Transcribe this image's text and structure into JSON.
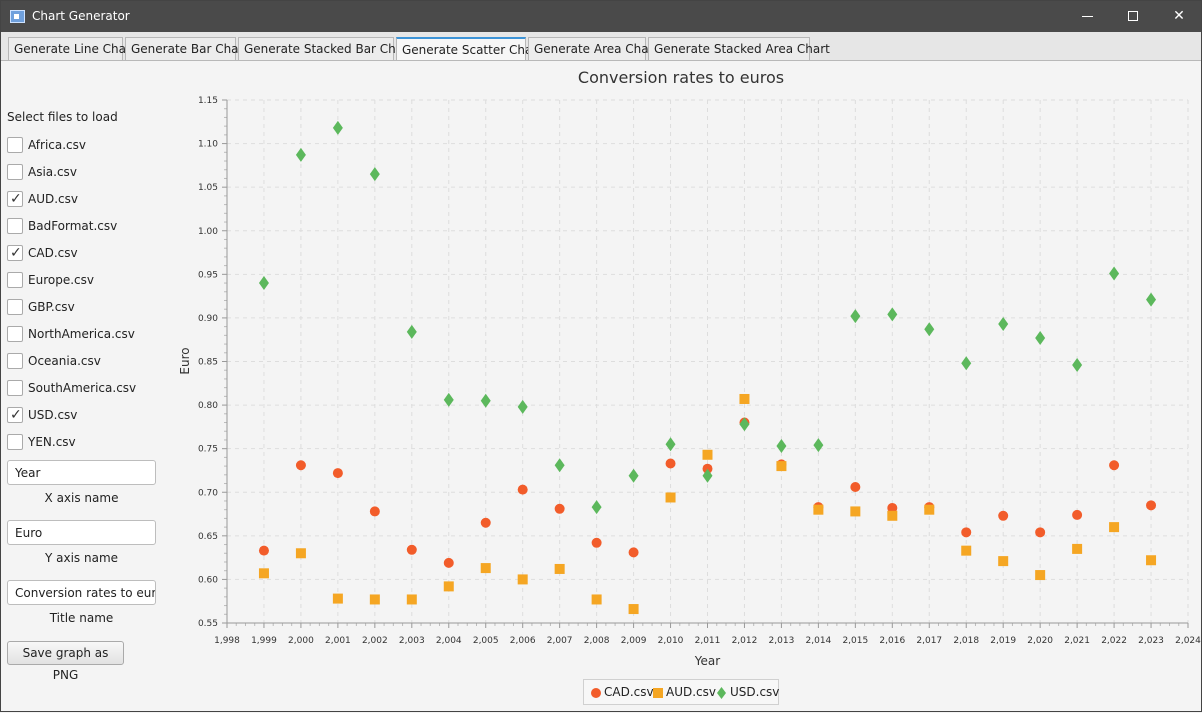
{
  "window": {
    "title": "Chart Generator",
    "minimize": "—",
    "maximize": "□",
    "close": "✕"
  },
  "tabs": [
    {
      "label": "Generate Line Chart"
    },
    {
      "label": "Generate Bar Chart"
    },
    {
      "label": "Generate Stacked Bar Chart"
    },
    {
      "label": "Generate Scatter Chart",
      "selected": true
    },
    {
      "label": "Generate Area Chart"
    },
    {
      "label": "Generate Stacked Area Chart"
    }
  ],
  "sidebar": {
    "select_files_label": "Select files to load",
    "files": [
      {
        "label": "Africa.csv",
        "checked": false
      },
      {
        "label": "Asia.csv",
        "checked": false
      },
      {
        "label": "AUD.csv",
        "checked": true
      },
      {
        "label": "BadFormat.csv",
        "checked": false
      },
      {
        "label": "CAD.csv",
        "checked": true
      },
      {
        "label": "Europe.csv",
        "checked": false
      },
      {
        "label": "GBP.csv",
        "checked": false
      },
      {
        "label": "NorthAmerica.csv",
        "checked": false
      },
      {
        "label": "Oceania.csv",
        "checked": false
      },
      {
        "label": "SouthAmerica.csv",
        "checked": false
      },
      {
        "label": "USD.csv",
        "checked": true
      },
      {
        "label": "YEN.csv",
        "checked": false
      }
    ],
    "x_axis_value": "Year",
    "x_axis_caption": "X axis name",
    "y_axis_value": "Euro",
    "y_axis_caption": "Y axis name",
    "title_value": "Conversion rates to euros",
    "title_caption": "Title name",
    "save_button": "Save graph as PNG"
  },
  "chart_data": {
    "type": "scatter",
    "title": "Conversion rates to euros",
    "xlabel": "Year",
    "ylabel": "Euro",
    "xlim": [
      1998,
      2024
    ],
    "ylim": [
      0.55,
      1.15
    ],
    "x_ticks": [
      "1,998",
      "1,999",
      "2,000",
      "2,001",
      "2,002",
      "2,003",
      "2,004",
      "2,005",
      "2,006",
      "2,007",
      "2,008",
      "2,009",
      "2,010",
      "2,011",
      "2,012",
      "2,013",
      "2,014",
      "2,015",
      "2,016",
      "2,017",
      "2,018",
      "2,019",
      "2,020",
      "2,021",
      "2,022",
      "2,023",
      "2,024"
    ],
    "y_ticks": [
      "0.55",
      "0.60",
      "0.65",
      "0.70",
      "0.75",
      "0.80",
      "0.85",
      "0.90",
      "0.95",
      "1.00",
      "1.05",
      "1.10",
      "1.15"
    ],
    "grid": true,
    "legend": "bottom",
    "series": [
      {
        "name": "CAD.csv",
        "marker": "circle",
        "color": "#f25c2a",
        "x": [
          1999,
          2000,
          2001,
          2002,
          2003,
          2004,
          2005,
          2006,
          2007,
          2008,
          2009,
          2010,
          2011,
          2012,
          2013,
          2014,
          2015,
          2016,
          2017,
          2018,
          2019,
          2020,
          2021,
          2022,
          2023
        ],
        "y": [
          0.633,
          0.731,
          0.722,
          0.678,
          0.634,
          0.619,
          0.665,
          0.703,
          0.681,
          0.642,
          0.631,
          0.733,
          0.727,
          0.78,
          0.732,
          0.683,
          0.706,
          0.682,
          0.683,
          0.654,
          0.673,
          0.654,
          0.674,
          0.731,
          0.685
        ]
      },
      {
        "name": "AUD.csv",
        "marker": "square",
        "color": "#f5a623",
        "x": [
          1999,
          2000,
          2001,
          2002,
          2003,
          2004,
          2005,
          2006,
          2007,
          2008,
          2009,
          2010,
          2011,
          2012,
          2013,
          2014,
          2015,
          2016,
          2017,
          2018,
          2019,
          2020,
          2021,
          2022,
          2023
        ],
        "y": [
          0.607,
          0.63,
          0.578,
          0.577,
          0.577,
          0.592,
          0.613,
          0.6,
          0.612,
          0.577,
          0.566,
          0.694,
          0.743,
          0.807,
          0.73,
          0.68,
          0.678,
          0.673,
          0.68,
          0.633,
          0.621,
          0.605,
          0.635,
          0.66,
          0.622
        ]
      },
      {
        "name": "USD.csv",
        "marker": "diamond",
        "color": "#5cb85c",
        "x": [
          1999,
          2000,
          2001,
          2002,
          2003,
          2004,
          2005,
          2006,
          2007,
          2008,
          2009,
          2010,
          2011,
          2012,
          2013,
          2014,
          2015,
          2016,
          2017,
          2018,
          2019,
          2020,
          2021,
          2022,
          2023
        ],
        "y": [
          0.94,
          1.087,
          1.118,
          1.065,
          0.884,
          0.806,
          0.805,
          0.798,
          0.731,
          0.683,
          0.719,
          0.755,
          0.719,
          0.778,
          0.753,
          0.754,
          0.902,
          0.904,
          0.887,
          0.848,
          0.893,
          0.877,
          0.846,
          0.951,
          0.921
        ]
      }
    ]
  }
}
